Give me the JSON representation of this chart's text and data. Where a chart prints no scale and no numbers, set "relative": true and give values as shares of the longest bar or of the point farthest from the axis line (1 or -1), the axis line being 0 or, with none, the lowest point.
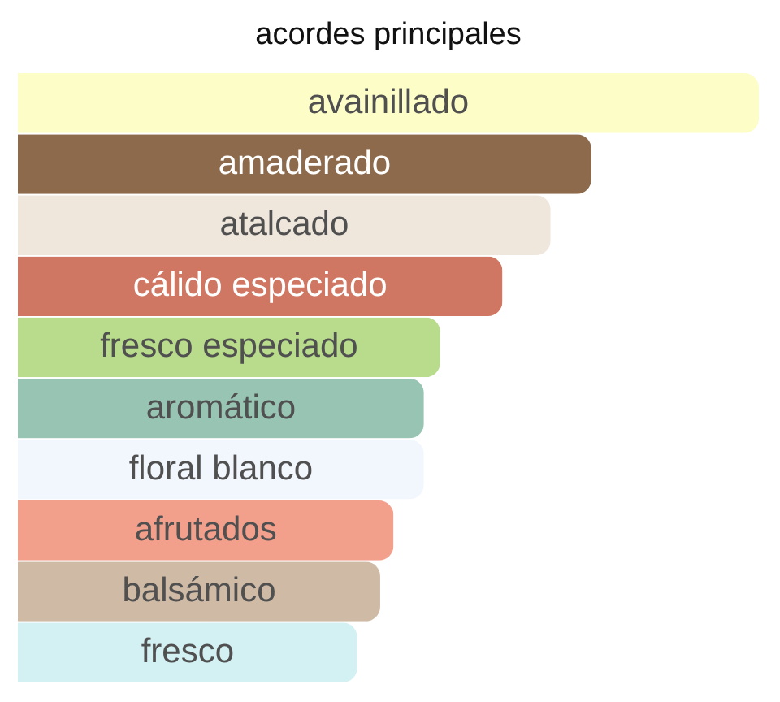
{
  "chart_data": {
    "type": "bar",
    "orientation": "horizontal",
    "relative": true,
    "title": "acordes principales",
    "categories": [
      "avainillado",
      "amaderado",
      "atalcado",
      "cálido especiado",
      "fresco especiado",
      "aromático",
      "floral blanco",
      "afrutados",
      "balsámico",
      "fresco"
    ],
    "values": [
      1,
      0.774,
      0.719,
      0.654,
      0.57,
      0.548,
      0.548,
      0.507,
      0.489,
      0.458
    ],
    "colors": [
      "#fdfdc8",
      "#8c6a4b",
      "#efe6dc",
      "#cf7762",
      "#b8dc8c",
      "#98c4b4",
      "#f2f6fd",
      "#f29f8c",
      "#cfbaa6",
      "#d3f0f3"
    ]
  }
}
